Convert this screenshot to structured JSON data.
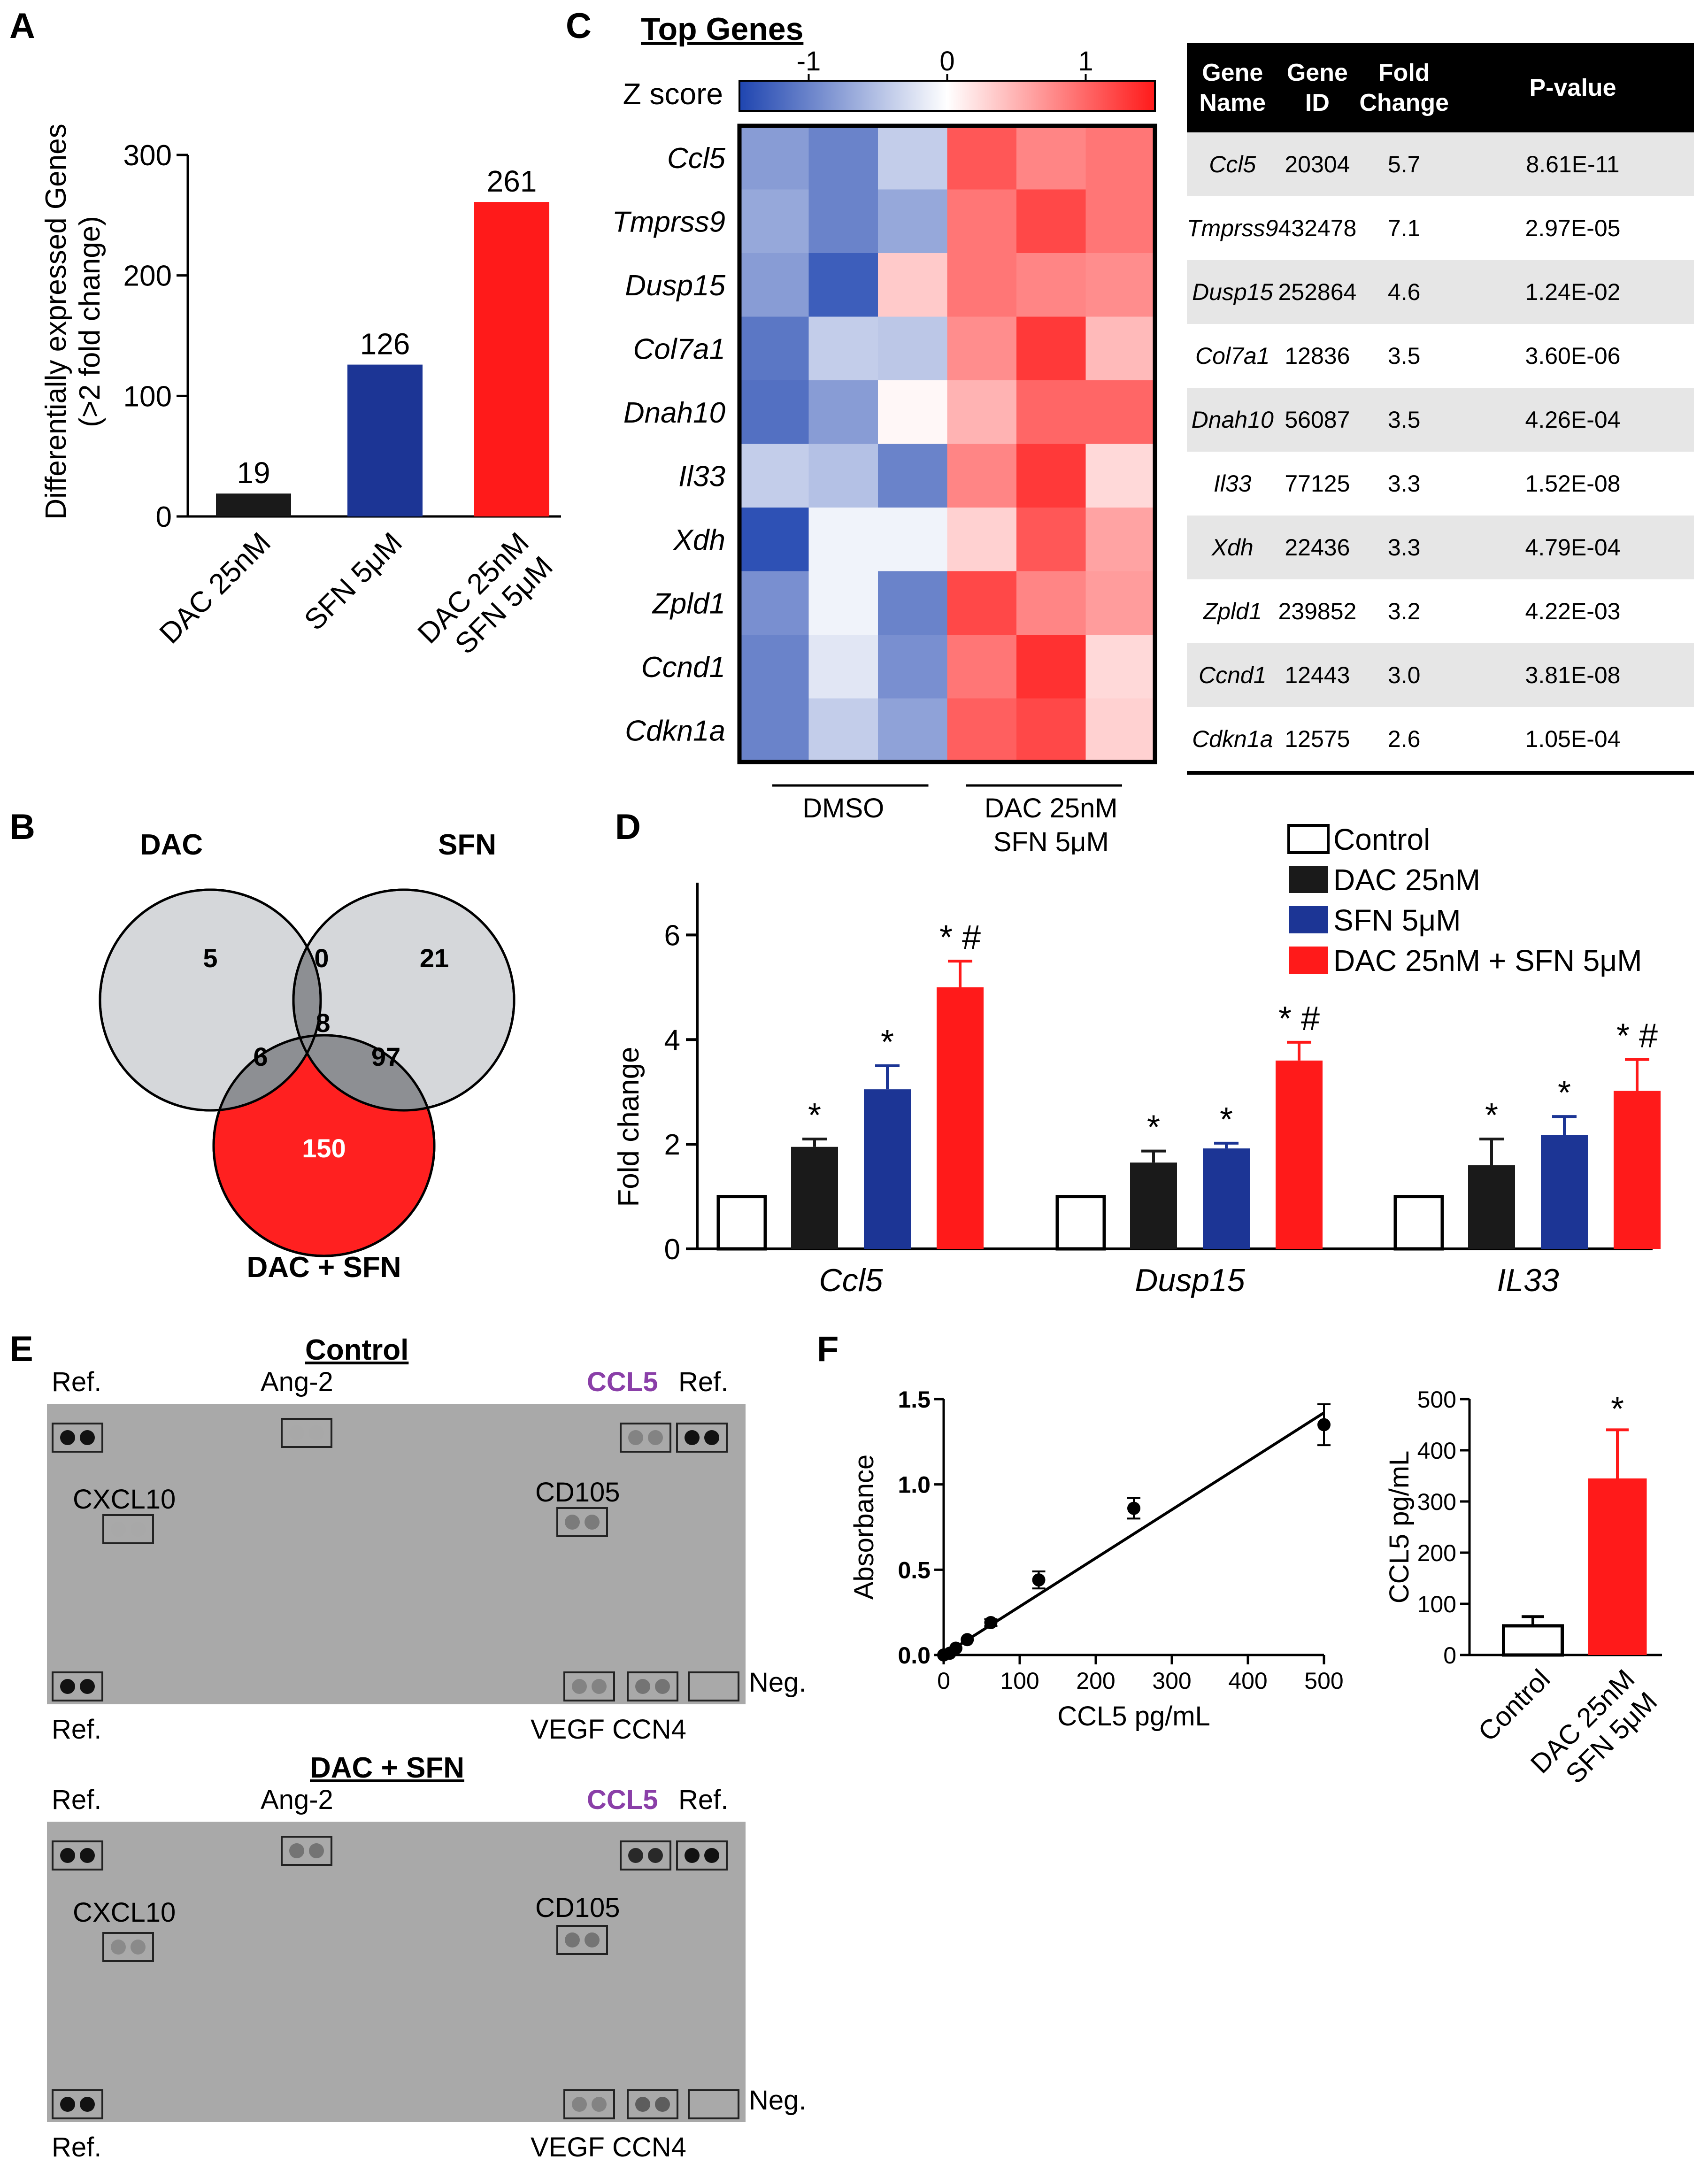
{
  "panel_labels": {
    "a": "A",
    "b": "B",
    "c": "C",
    "d": "D",
    "e": "E",
    "f": "F"
  },
  "chart_data": [
    {
      "id": "panel-a",
      "type": "bar",
      "ylabel": "Differentially expressed Genes (>2 fold change)",
      "ylabel_lines": [
        "Differentially expressed Genes",
        "(>2 fold change)"
      ],
      "categories": [
        "DAC 25nM",
        "SFN 5μM",
        "DAC 25nM SFN 5μM"
      ],
      "category_lines": [
        [
          "DAC 25nM"
        ],
        [
          "SFN 5μM"
        ],
        [
          "DAC 25nM",
          "SFN 5μM"
        ]
      ],
      "values": [
        19,
        126,
        261
      ],
      "value_labels": [
        "19",
        "126",
        "261"
      ],
      "colors": [
        "#1a1a1a",
        "#1c3595",
        "#ff1a1a"
      ],
      "ylim": [
        0,
        300
      ],
      "yticks": [
        "0",
        "100",
        "200",
        "300"
      ]
    },
    {
      "id": "panel-c-heatmap",
      "type": "heatmap",
      "title": "Top Genes",
      "colorbar_label": "Z score",
      "colorbar_ticks": [
        "-1",
        "0",
        "1"
      ],
      "rows": [
        "Ccl5",
        "Tmprss9",
        "Dusp15",
        "Col7a1",
        "Dnah10",
        "Il33",
        "Xdh",
        "Zpld1",
        "Ccnd1",
        "Cdkn1a"
      ],
      "groups": [
        "DMSO",
        "DAC 25nM SFN 5μM"
      ],
      "group_lines": [
        [
          "DMSO"
        ],
        [
          "DAC 25nM",
          "SFN 5μM"
        ]
      ],
      "values": [
        [
          -0.8,
          -1.0,
          -0.4,
          1.1,
          0.8,
          0.9
        ],
        [
          -0.7,
          -1.0,
          -0.7,
          0.9,
          1.2,
          0.9
        ],
        [
          -0.8,
          -1.3,
          0.35,
          0.9,
          0.8,
          0.75
        ],
        [
          -1.1,
          -0.4,
          -0.45,
          0.75,
          1.3,
          0.45
        ],
        [
          -1.15,
          -0.8,
          0.05,
          0.5,
          1.0,
          1.0
        ],
        [
          -0.4,
          -0.5,
          -1.0,
          0.8,
          1.3,
          0.25
        ],
        [
          -1.4,
          -0.1,
          -0.1,
          0.3,
          1.1,
          0.6
        ],
        [
          -0.9,
          -0.1,
          -1.0,
          1.2,
          0.8,
          0.65
        ],
        [
          -1.0,
          -0.2,
          -0.9,
          0.9,
          1.35,
          0.25
        ],
        [
          -1.0,
          -0.4,
          -0.75,
          1.05,
          1.2,
          0.3
        ]
      ]
    },
    {
      "id": "panel-d",
      "type": "bar",
      "ylabel": "Fold change",
      "categories": [
        "Ccl5",
        "Dusp15",
        "IL33"
      ],
      "series": [
        {
          "name": "Control",
          "values": [
            1,
            1,
            1
          ],
          "errors": [
            0,
            0,
            0
          ],
          "marks": [
            "",
            "",
            ""
          ]
        },
        {
          "name": "DAC 25nM",
          "values": [
            1.95,
            1.65,
            1.6
          ],
          "errors": [
            0.15,
            0.22,
            0.5
          ],
          "marks": [
            "*",
            "*",
            "*"
          ]
        },
        {
          "name": "SFN 5μM",
          "values": [
            3.05,
            1.92,
            2.18
          ],
          "errors": [
            0.45,
            0.1,
            0.35
          ],
          "marks": [
            "*",
            "*",
            "*"
          ]
        },
        {
          "name": "DAC 25nM + SFN 5μM",
          "values": [
            5.0,
            3.6,
            3.02
          ],
          "errors": [
            0.5,
            0.35,
            0.6
          ],
          "marks": [
            "* #",
            "* #",
            "* #"
          ]
        }
      ],
      "colors": [
        "#ffffff",
        "#1a1a1a",
        "#1c3595",
        "#ff1a1a"
      ],
      "ylim": [
        0,
        7
      ],
      "yticks": [
        "0",
        "2",
        "4",
        "6"
      ],
      "legend": "top-right"
    },
    {
      "id": "panel-f-std",
      "type": "scatter",
      "xlabel": "CCL5 pg/mL",
      "ylabel": "Absorbance",
      "points": [
        [
          0,
          0
        ],
        [
          8,
          0.01
        ],
        [
          16,
          0.04
        ],
        [
          31,
          0.09
        ],
        [
          62,
          0.19
        ],
        [
          125,
          0.44
        ],
        [
          250,
          0.86
        ],
        [
          500,
          1.35
        ]
      ],
      "errors": [
        0,
        0,
        0,
        0,
        0.02,
        0.05,
        0.06,
        0.12
      ],
      "fit_line": [
        [
          0,
          0
        ],
        [
          500,
          1.42
        ]
      ],
      "xlim": [
        0,
        500
      ],
      "ylim": [
        0,
        1.5
      ],
      "xticks": [
        "0",
        "100",
        "200",
        "300",
        "400",
        "500"
      ],
      "yticks": [
        "0.0",
        "0.5",
        "1.0",
        "1.5"
      ]
    },
    {
      "id": "panel-f-bar",
      "type": "bar",
      "ylabel": "CCL5 pg/mL",
      "categories": [
        "Control",
        "DAC 25nM SFN 5μM"
      ],
      "category_lines": [
        [
          "Control"
        ],
        [
          "DAC 25nM",
          "SFN 5μM"
        ]
      ],
      "values": [
        57,
        345
      ],
      "errors": [
        18,
        95
      ],
      "marks": [
        "",
        "*"
      ],
      "colors": [
        "#ffffff",
        "#ff1a1a"
      ],
      "ylim": [
        0,
        500
      ],
      "yticks": [
        "0",
        "100",
        "200",
        "300",
        "400",
        "500"
      ]
    }
  ],
  "venn": {
    "labels": {
      "dac": "DAC",
      "sfn": "SFN",
      "combo": "DAC + SFN"
    },
    "counts": {
      "dac_only": "5",
      "dac_sfn": "0",
      "sfn_only": "21",
      "all": "8",
      "dac_combo": "6",
      "sfn_combo": "97",
      "combo_only": "150"
    }
  },
  "table": {
    "headers": [
      "Gene Name",
      "Gene ID",
      "Fold Change",
      "P-value"
    ],
    "rows": [
      [
        "Ccl5",
        "20304",
        "5.7",
        "8.61E-11"
      ],
      [
        "Tmprss9",
        "432478",
        "7.1",
        "2.97E-05"
      ],
      [
        "Dusp15",
        "252864",
        "4.6",
        "1.24E-02"
      ],
      [
        "Col7a1",
        "12836",
        "3.5",
        "3.60E-06"
      ],
      [
        "Dnah10",
        "56087",
        "3.5",
        "4.26E-04"
      ],
      [
        "Il33",
        "77125",
        "3.3",
        "1.52E-08"
      ],
      [
        "Xdh",
        "22436",
        "3.3",
        "4.79E-04"
      ],
      [
        "Zpld1",
        "239852",
        "3.2",
        "4.22E-03"
      ],
      [
        "Ccnd1",
        "12443",
        "3.0",
        "3.81E-08"
      ],
      [
        "Cdkn1a",
        "12575",
        "2.6",
        "1.05E-04"
      ]
    ]
  },
  "blots": [
    {
      "title": "Control",
      "ref": "Ref.",
      "ang2": "Ang-2",
      "ccl5": "CCL5",
      "cxcl10": "CXCL10",
      "cd105": "CD105",
      "neg": "Neg.",
      "vegf_ccn4": "VEGF CCN4",
      "intensity": {
        "ang2": 0.0,
        "ccl5": 0.25,
        "cxcl10": 0.0,
        "cd105": 0.3,
        "vegf": 0.25,
        "ccn4": 0.35
      }
    },
    {
      "title": "DAC + SFN",
      "ref": "Ref.",
      "ang2": "Ang-2",
      "ccl5": "CCL5",
      "cxcl10": "CXCL10",
      "cd105": "CD105",
      "neg": "Neg.",
      "vegf_ccn4": "VEGF CCN4",
      "intensity": {
        "ang2": 0.35,
        "ccl5": 0.85,
        "cxcl10": 0.2,
        "cd105": 0.35,
        "vegf": 0.25,
        "ccn4": 0.5
      }
    }
  ]
}
